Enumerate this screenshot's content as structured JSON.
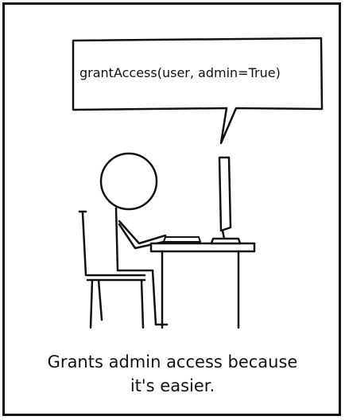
{
  "speech_bubble": {
    "text": "grantAccess(user, admin=True)"
  },
  "caption": {
    "line1": "Grants admin access because",
    "line2": "it's easier."
  },
  "colors": {
    "ink": "#111111",
    "background": "#ffffff"
  }
}
